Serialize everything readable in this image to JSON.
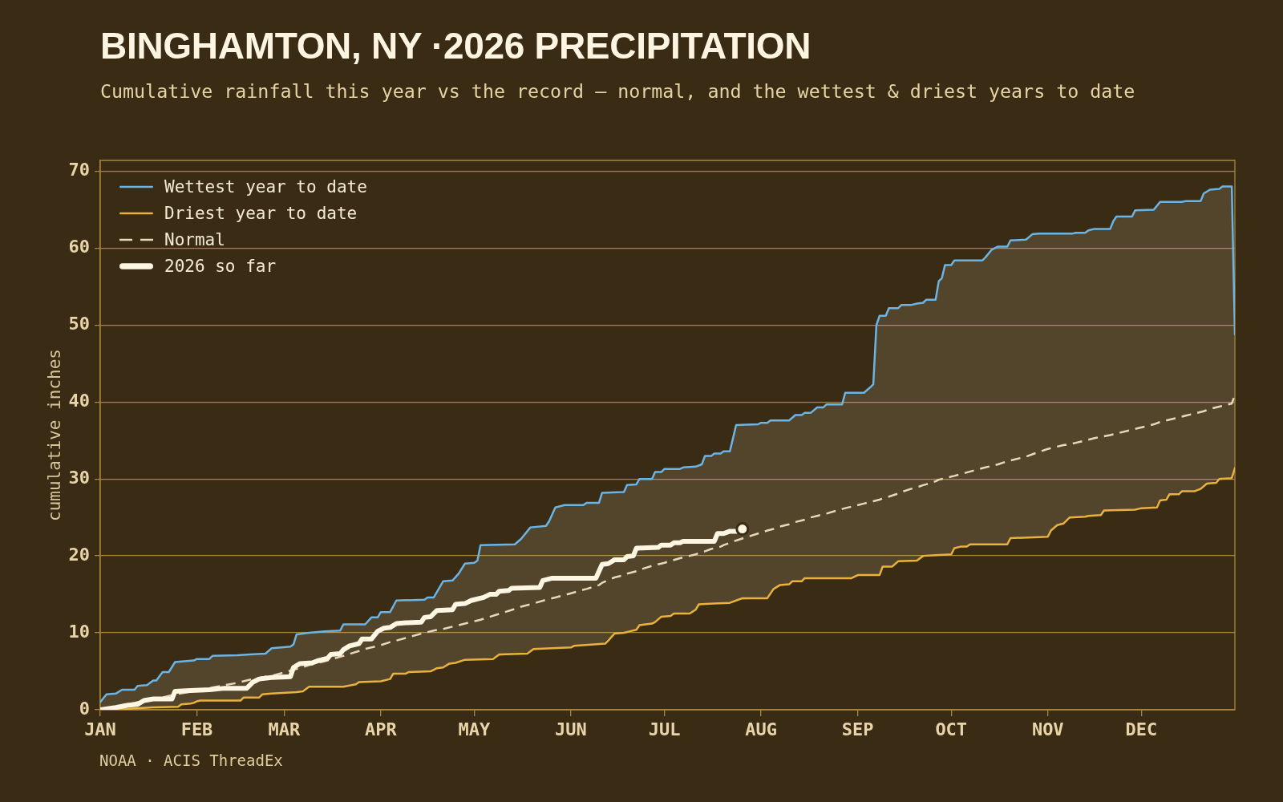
{
  "chart_data": {
    "type": "line",
    "title": "BINGHAMTON, NY ·2026 PRECIPITATION",
    "subtitle": "Cumulative rainfall this year vs the record — normal, and the wettest & driest years to date",
    "ylabel": "cumulative inches",
    "xlim": [
      "--01-01",
      "--12-31"
    ],
    "xticks": [
      {
        "value": "--01-01",
        "label": "JAN"
      },
      {
        "value": "--02-01",
        "label": "FEB"
      },
      {
        "value": "--03-01",
        "label": "MAR"
      },
      {
        "value": "--04-01",
        "label": "APR"
      },
      {
        "value": "--05-01",
        "label": "MAY"
      },
      {
        "value": "--06-01",
        "label": "JUN"
      },
      {
        "value": "--07-01",
        "label": "JUL"
      },
      {
        "value": "--08-01",
        "label": "AUG"
      },
      {
        "value": "--09-01",
        "label": "SEP"
      },
      {
        "value": "--10-01",
        "label": "OCT"
      },
      {
        "value": "--11-01",
        "label": "NOV"
      },
      {
        "value": "--12-01",
        "label": "DEC"
      }
    ],
    "ylim": [
      0,
      71.4
    ],
    "yticks": [
      0,
      10,
      20,
      30,
      40,
      50,
      60,
      70
    ],
    "grid": "y",
    "legend": "top left",
    "annotations": [
      "NOAA · ACIS ThreadEx"
    ],
    "series": [
      {
        "name": "Wettest year to date",
        "color": "#6ab4e6",
        "x": [
          "--01-01",
          "--01-03",
          "--01-06",
          "--01-08",
          "--01-12",
          "--01-13",
          "--01-16",
          "--01-18",
          "--01-19",
          "--01-21",
          "--01-23",
          "--01-25",
          "--01-31",
          "--02-01",
          "--02-05",
          "--02-06",
          "--02-14",
          "--02-18",
          "--02-23",
          "--02-25",
          "--03-03",
          "--03-04",
          "--03-05",
          "--03-09",
          "--03-14",
          "--03-19",
          "--03-20",
          "--03-27",
          "--03-29",
          "--03-31",
          "--04-01",
          "--04-04",
          "--04-06",
          "--04-15",
          "--04-16",
          "--04-18",
          "--04-21",
          "--04-24",
          "--04-26",
          "--04-28",
          "--05-01",
          "--05-02",
          "--05-03",
          "--05-14",
          "--05-16",
          "--05-19",
          "--05-24",
          "--05-25",
          "--05-27",
          "--05-30",
          "--06-05",
          "--06-06",
          "--06-10",
          "--06-11",
          "--06-18",
          "--06-19",
          "--06-22",
          "--06-23",
          "--06-27",
          "--06-28",
          "--06-30",
          "--07-01",
          "--07-06",
          "--07-07",
          "--07-11",
          "--07-13",
          "--07-14",
          "--07-16",
          "--07-17",
          "--07-19",
          "--07-20",
          "--07-22",
          "--07-24",
          "--07-31",
          "--08-01",
          "--08-03",
          "--08-04",
          "--08-10",
          "--08-12",
          "--08-14",
          "--08-15",
          "--08-17",
          "--08-19",
          "--08-21",
          "--08-22",
          "--08-27",
          "--08-28",
          "--09-03",
          "--09-05",
          "--09-06",
          "--09-07",
          "--09-08",
          "--09-10",
          "--09-11",
          "--09-14",
          "--09-15",
          "--09-18",
          "--09-20",
          "--09-22",
          "--09-23",
          "--09-26",
          "--09-27",
          "--09-28",
          "--09-29",
          "--10-01",
          "--10-02",
          "--10-11",
          "--10-12",
          "--10-14",
          "--10-16",
          "--10-19",
          "--10-20",
          "--10-25",
          "--10-27",
          "--10-29",
          "--11-09",
          "--11-10",
          "--11-13",
          "--11-14",
          "--11-16",
          "--11-21",
          "--11-22",
          "--11-23",
          "--11-28",
          "--11-29",
          "--12-05",
          "--12-07",
          "--12-14",
          "--12-15",
          "--12-20",
          "--12-21",
          "--12-23",
          "--12-26",
          "--12-27",
          "--12-30",
          "--12-31"
        ],
        "values": [
          1.0,
          2.0,
          2.1,
          2.6,
          2.6,
          3.1,
          3.2,
          3.8,
          3.8,
          4.9,
          4.9,
          6.2,
          6.4,
          6.6,
          6.6,
          7.0,
          7.1,
          7.2,
          7.3,
          8.0,
          8.2,
          8.5,
          9.8,
          10.0,
          10.2,
          10.3,
          11.1,
          11.1,
          12.0,
          12.0,
          12.7,
          12.7,
          14.2,
          14.3,
          14.6,
          14.6,
          16.7,
          16.8,
          17.7,
          19.0,
          19.1,
          19.4,
          21.4,
          21.5,
          22.2,
          23.7,
          23.9,
          24.5,
          26.3,
          26.6,
          26.6,
          26.9,
          26.9,
          28.2,
          28.3,
          29.2,
          29.3,
          30.0,
          30.0,
          30.9,
          30.9,
          31.3,
          31.3,
          31.5,
          31.6,
          31.9,
          33.0,
          33.0,
          33.3,
          33.3,
          33.6,
          33.6,
          37.0,
          37.1,
          37.3,
          37.3,
          37.6,
          37.6,
          38.3,
          38.3,
          38.6,
          38.6,
          39.3,
          39.3,
          39.7,
          39.7,
          41.2,
          41.2,
          41.9,
          42.3,
          50.0,
          51.2,
          51.2,
          52.2,
          52.2,
          52.6,
          52.6,
          52.8,
          52.9,
          53.3,
          53.3,
          55.7,
          56.1,
          57.8,
          57.8,
          58.4,
          58.4,
          58.8,
          59.8,
          60.2,
          60.2,
          61.0,
          61.1,
          61.8,
          61.9,
          61.9,
          62.0,
          62.0,
          62.3,
          62.5,
          62.5,
          63.5,
          64.1,
          64.1,
          64.9,
          65.0,
          66.0,
          66.0,
          66.1,
          66.1,
          67.1,
          67.6,
          67.7,
          68.0,
          68.0,
          48.8
        ]
      },
      {
        "name": "Driest year to date",
        "color": "#e8b23c",
        "x": [
          "--01-01",
          "--01-09",
          "--01-18",
          "--01-26",
          "--01-27",
          "--01-30",
          "--01-31",
          "--02-01",
          "--02-02",
          "--02-15",
          "--02-16",
          "--02-21",
          "--02-22",
          "--02-25",
          "--03-05",
          "--03-07",
          "--03-09",
          "--03-20",
          "--03-24",
          "--03-25",
          "--04-01",
          "--04-04",
          "--04-05",
          "--04-09",
          "--04-10",
          "--04-17",
          "--04-19",
          "--04-21",
          "--04-23",
          "--04-25",
          "--04-28",
          "--05-07",
          "--05-09",
          "--05-18",
          "--05-20",
          "--06-01",
          "--06-02",
          "--06-12",
          "--06-13",
          "--06-15",
          "--06-18",
          "--06-20",
          "--06-22",
          "--06-23",
          "--06-27",
          "--06-28",
          "--06-30",
          "--07-03",
          "--07-04",
          "--07-09",
          "--07-11",
          "--07-12",
          "--07-17",
          "--07-22",
          "--07-24",
          "--07-26",
          "--08-03",
          "--08-05",
          "--08-07",
          "--08-10",
          "--08-11",
          "--08-14",
          "--08-15",
          "--08-30",
          "--09-01",
          "--09-08",
          "--09-09",
          "--09-12",
          "--09-14",
          "--09-20",
          "--09-22",
          "--09-26",
          "--10-01",
          "--10-02",
          "--10-04",
          "--10-06",
          "--10-07",
          "--10-19",
          "--10-20",
          "--11-01",
          "--11-02",
          "--11-04",
          "--11-06",
          "--11-08",
          "--11-13",
          "--11-14",
          "--11-18",
          "--11-19",
          "--11-29",
          "--12-01",
          "--12-06",
          "--12-07",
          "--12-09",
          "--12-10",
          "--12-13",
          "--12-14",
          "--12-18",
          "--12-20",
          "--12-22",
          "--12-25",
          "--12-26",
          "--12-30",
          "--12-31"
        ],
        "values": [
          0.0,
          0.1,
          0.3,
          0.4,
          0.7,
          0.8,
          0.9,
          1.1,
          1.2,
          1.2,
          1.6,
          1.6,
          2.0,
          2.1,
          2.3,
          2.4,
          3.0,
          3.0,
          3.3,
          3.6,
          3.7,
          4.0,
          4.7,
          4.7,
          4.9,
          5.0,
          5.4,
          5.5,
          6.0,
          6.1,
          6.5,
          6.6,
          7.2,
          7.3,
          7.9,
          8.1,
          8.3,
          8.6,
          9.0,
          9.9,
          10.0,
          10.2,
          10.4,
          11.0,
          11.2,
          11.4,
          12.1,
          12.2,
          12.5,
          12.5,
          13.0,
          13.7,
          13.8,
          13.9,
          14.2,
          14.5,
          14.5,
          15.7,
          16.2,
          16.3,
          16.7,
          16.7,
          17.1,
          17.1,
          17.5,
          17.5,
          18.6,
          18.6,
          19.3,
          19.4,
          20.0,
          20.1,
          20.2,
          21.0,
          21.2,
          21.2,
          21.5,
          21.5,
          22.3,
          22.5,
          23.3,
          24.0,
          24.2,
          25.0,
          25.1,
          25.2,
          25.3,
          25.9,
          26.0,
          26.2,
          26.3,
          27.2,
          27.3,
          28.0,
          28.0,
          28.4,
          28.4,
          28.7,
          29.4,
          29.5,
          30.0,
          30.1,
          31.4
        ]
      },
      {
        "name": "Normal",
        "color": "#e6d8b8",
        "line_style": "dashed",
        "x": [
          "--01-01",
          "--01-03",
          "--01-06",
          "--01-08",
          "--01-12",
          "--01-13",
          "--01-16",
          "--01-18",
          "--01-19",
          "--01-21",
          "--01-23",
          "--01-25",
          "--01-31",
          "--02-01",
          "--02-05",
          "--02-06",
          "--02-14",
          "--02-18",
          "--02-23",
          "--02-25",
          "--03-03",
          "--03-04",
          "--03-05",
          "--03-09",
          "--03-14",
          "--03-19",
          "--03-20",
          "--03-27",
          "--03-29",
          "--03-31",
          "--04-01",
          "--04-04",
          "--04-06",
          "--04-15",
          "--04-16",
          "--04-18",
          "--04-21",
          "--04-24",
          "--04-26",
          "--04-28",
          "--05-01",
          "--05-02",
          "--05-03",
          "--05-14",
          "--05-16",
          "--05-19",
          "--05-24",
          "--05-25",
          "--05-27",
          "--05-30",
          "--06-05",
          "--06-06",
          "--06-10",
          "--06-11",
          "--06-15",
          "--06-18",
          "--06-19",
          "--06-22",
          "--06-23",
          "--06-27",
          "--06-28",
          "--06-30",
          "--07-01",
          "--07-06",
          "--07-07",
          "--07-11",
          "--07-13",
          "--07-14",
          "--07-16",
          "--07-17",
          "--07-19",
          "--07-20",
          "--07-22",
          "--07-24",
          "--07-31",
          "--08-01",
          "--08-03",
          "--08-04",
          "--08-05",
          "--08-07",
          "--08-10",
          "--08-12",
          "--08-14",
          "--08-15",
          "--08-17",
          "--08-19",
          "--08-21",
          "--08-22",
          "--08-27",
          "--08-28",
          "--09-03",
          "--09-05",
          "--09-06",
          "--09-07",
          "--09-08",
          "--09-09",
          "--09-10",
          "--09-11",
          "--09-14",
          "--09-15",
          "--09-18",
          "--09-20",
          "--09-22",
          "--09-23",
          "--09-26",
          "--09-27",
          "--09-28",
          "--09-29",
          "--10-01",
          "--10-02",
          "--10-11",
          "--10-12",
          "--10-14",
          "--10-16",
          "--10-19",
          "--10-20",
          "--10-25",
          "--10-27",
          "--10-29",
          "--11-01",
          "--11-02",
          "--11-04",
          "--11-06",
          "--11-08",
          "--11-09",
          "--11-10",
          "--11-13",
          "--11-14",
          "--11-16",
          "--11-21",
          "--11-22",
          "--11-23",
          "--11-28",
          "--11-29",
          "--12-05",
          "--12-07",
          "--12-14",
          "--12-15",
          "--12-20",
          "--12-21",
          "--12-23",
          "--12-26",
          "--12-27",
          "--12-30",
          "--12-31"
        ],
        "values": [
          0.0,
          0.2,
          0.4,
          0.6,
          0.9,
          1.0,
          1.2,
          1.4,
          1.5,
          1.6,
          1.8,
          2.0,
          2.4,
          2.5,
          2.8,
          2.9,
          3.5,
          3.9,
          4.3,
          4.4,
          5.1,
          5.2,
          5.3,
          5.8,
          6.3,
          6.9,
          7.0,
          7.9,
          8.1,
          8.3,
          8.4,
          8.8,
          9.0,
          10.0,
          10.1,
          10.3,
          10.5,
          10.8,
          11.0,
          11.2,
          11.5,
          11.6,
          11.7,
          13.1,
          13.4,
          13.7,
          14.3,
          14.4,
          14.6,
          14.9,
          15.6,
          15.7,
          16.2,
          16.5,
          17.2,
          17.5,
          17.7,
          18.0,
          18.2,
          18.7,
          18.8,
          19.0,
          19.1,
          19.7,
          19.8,
          20.2,
          20.5,
          20.6,
          20.9,
          21.0,
          21.2,
          21.4,
          21.7,
          22.0,
          22.9,
          23.0,
          23.3,
          23.4,
          23.5,
          23.8,
          24.1,
          24.4,
          24.6,
          24.7,
          25.0,
          25.2,
          25.4,
          25.5,
          26.1,
          26.2,
          26.8,
          27.0,
          27.1,
          27.2,
          27.3,
          27.5,
          27.6,
          27.7,
          28.1,
          28.3,
          28.7,
          28.9,
          29.2,
          29.3,
          29.7,
          29.9,
          30.0,
          30.1,
          30.3,
          30.4,
          31.4,
          31.5,
          31.7,
          31.9,
          32.3,
          32.4,
          32.9,
          33.2,
          33.5,
          33.9,
          34.0,
          34.2,
          34.4,
          34.5,
          34.6,
          34.7,
          35.0,
          35.1,
          35.3,
          35.7,
          35.8,
          35.9,
          36.4,
          36.5,
          37.1,
          37.4,
          38.1,
          38.2,
          38.7,
          38.8,
          39.1,
          39.4,
          39.5,
          39.8,
          40.9
        ],
        "lower": [
          0.0,
          0.0,
          0.1,
          0.1,
          0.2,
          0.2,
          0.3,
          0.3,
          0.3,
          0.3,
          0.4,
          0.4,
          0.9,
          1.1,
          1.2,
          1.2,
          1.2,
          1.6,
          2.0,
          2.1,
          2.2,
          2.3,
          2.3,
          3.0,
          3.0,
          3.0,
          3.0,
          3.6,
          3.7,
          3.7,
          3.7,
          4.0,
          4.7,
          5.0,
          5.0,
          5.2,
          5.5,
          6.0,
          6.2,
          6.5,
          6.5,
          6.5,
          6.6,
          7.3,
          7.3,
          7.6,
          8.0,
          8.0,
          8.0,
          8.1,
          8.4,
          8.4,
          8.5,
          8.6,
          9.9,
          10.0,
          10.1,
          10.4,
          11.0,
          11.2,
          11.4,
          12.1,
          12.1,
          12.5,
          12.5,
          13.0,
          13.7,
          13.7,
          13.8,
          13.8,
          13.8,
          13.9,
          13.9,
          14.2,
          14.5,
          14.5,
          14.5,
          15.1,
          15.7,
          16.2,
          16.3,
          16.7,
          16.7,
          17.1,
          17.1,
          17.1,
          17.1,
          17.1,
          17.1,
          17.1,
          17.5,
          17.5,
          17.5,
          17.5,
          17.5,
          18.6,
          18.6,
          18.6,
          19.3,
          19.3,
          19.4,
          19.4,
          20.0,
          20.0,
          20.1,
          20.1,
          20.1,
          20.2,
          20.2,
          21.0,
          21.5,
          21.5,
          21.5,
          21.5,
          21.5,
          22.3,
          22.4,
          22.4,
          22.4,
          22.5,
          23.3,
          24.0,
          24.2,
          25.0,
          25.0,
          25.0,
          25.1,
          25.2,
          25.2,
          25.9,
          25.9,
          25.9,
          26.0,
          26.0,
          26.3,
          27.2,
          28.4,
          28.4,
          28.7,
          29.0,
          29.4,
          30.0,
          30.0,
          30.1,
          31.4
        ],
        "upper": [
          1.0,
          2.0,
          2.1,
          2.6,
          2.6,
          3.1,
          3.2,
          3.8,
          3.8,
          4.9,
          4.9,
          6.2,
          6.4,
          6.6,
          6.6,
          7.0,
          7.1,
          7.2,
          7.3,
          8.0,
          8.2,
          8.5,
          9.8,
          10.0,
          10.2,
          10.3,
          11.1,
          11.1,
          12.0,
          12.0,
          12.7,
          12.7,
          14.2,
          14.3,
          14.6,
          14.6,
          16.7,
          16.8,
          17.7,
          19.0,
          19.1,
          19.4,
          21.4,
          21.5,
          22.2,
          23.7,
          23.9,
          24.5,
          26.3,
          26.6,
          26.6,
          26.9,
          26.9,
          28.2,
          28.2,
          28.3,
          29.2,
          29.3,
          30.0,
          30.0,
          30.9,
          30.9,
          31.3,
          31.3,
          31.5,
          31.6,
          31.9,
          33.0,
          33.0,
          33.3,
          33.3,
          33.6,
          33.6,
          37.0,
          37.1,
          37.3,
          37.3,
          37.6,
          37.6,
          37.6,
          37.6,
          38.3,
          38.3,
          38.6,
          38.6,
          39.3,
          39.3,
          39.7,
          39.7,
          41.2,
          41.2,
          41.9,
          42.3,
          50.0,
          51.2,
          51.2,
          51.2,
          52.2,
          52.2,
          52.6,
          52.6,
          52.8,
          52.9,
          53.3,
          53.3,
          55.7,
          56.1,
          57.8,
          57.8,
          58.4,
          58.4,
          58.8,
          59.8,
          60.2,
          60.2,
          61.0,
          61.1,
          61.8,
          61.9,
          61.9,
          61.9,
          61.9,
          61.9,
          61.9,
          61.9,
          62.0,
          62.0,
          62.3,
          62.5,
          62.5,
          63.5,
          64.1,
          64.1,
          64.9,
          65.0,
          66.0,
          66.0,
          66.1,
          66.1,
          67.1,
          67.6,
          67.7,
          68.0,
          68.0,
          48.8
        ]
      },
      {
        "name": "2026 so far",
        "color": "#fdf6e3",
        "x": [
          "--01-01",
          "--01-06",
          "--01-10",
          "--01-13",
          "--01-15",
          "--01-18",
          "--01-24",
          "--01-25",
          "--01-30",
          "--02-05",
          "--02-10",
          "--02-17",
          "--02-19",
          "--02-21",
          "--02-25",
          "--03-03",
          "--03-04",
          "--03-06",
          "--03-10",
          "--03-12",
          "--03-15",
          "--03-16",
          "--03-19",
          "--03-20",
          "--03-22",
          "--03-25",
          "--03-26",
          "--03-29",
          "--03-31",
          "--04-02",
          "--04-04",
          "--04-06",
          "--04-09",
          "--04-14",
          "--04-15",
          "--04-17",
          "--04-19",
          "--04-24",
          "--04-25",
          "--04-28",
          "--04-30",
          "--05-04",
          "--05-06",
          "--05-08",
          "--05-09",
          "--05-12",
          "--05-13",
          "--05-22",
          "--05-23",
          "--05-26",
          "--06-09",
          "--06-11",
          "--06-13",
          "--06-15",
          "--06-18",
          "--06-19",
          "--06-21",
          "--06-22",
          "--06-29",
          "--06-30",
          "--07-03",
          "--07-04",
          "--07-06",
          "--07-07",
          "--07-17",
          "--07-18",
          "--07-20",
          "--07-22",
          "--07-24",
          "--07-26"
        ],
        "values": [
          0.0,
          0.3,
          0.6,
          0.7,
          1.2,
          1.4,
          1.4,
          2.4,
          2.5,
          2.6,
          2.8,
          2.8,
          3.6,
          4.0,
          4.2,
          4.3,
          5.5,
          6.0,
          6.1,
          6.4,
          6.7,
          7.2,
          7.3,
          7.8,
          8.3,
          8.6,
          9.2,
          9.2,
          10.2,
          10.6,
          10.7,
          11.2,
          11.3,
          11.4,
          12.0,
          12.1,
          12.9,
          13.0,
          13.7,
          13.8,
          14.2,
          14.6,
          15.0,
          15.0,
          15.4,
          15.5,
          15.8,
          15.9,
          16.8,
          17.1,
          17.1,
          18.9,
          19.0,
          19.5,
          19.5,
          19.9,
          20.0,
          21.0,
          21.1,
          21.4,
          21.4,
          21.7,
          21.7,
          21.9,
          21.9,
          22.9,
          22.9,
          23.2,
          23.2,
          23.5
        ]
      },
      {
        "type": "scatter",
        "color": "#fdf6e3",
        "marker": "circle",
        "x": [
          "--07-26"
        ],
        "values": [
          23.5
        ]
      }
    ]
  }
}
